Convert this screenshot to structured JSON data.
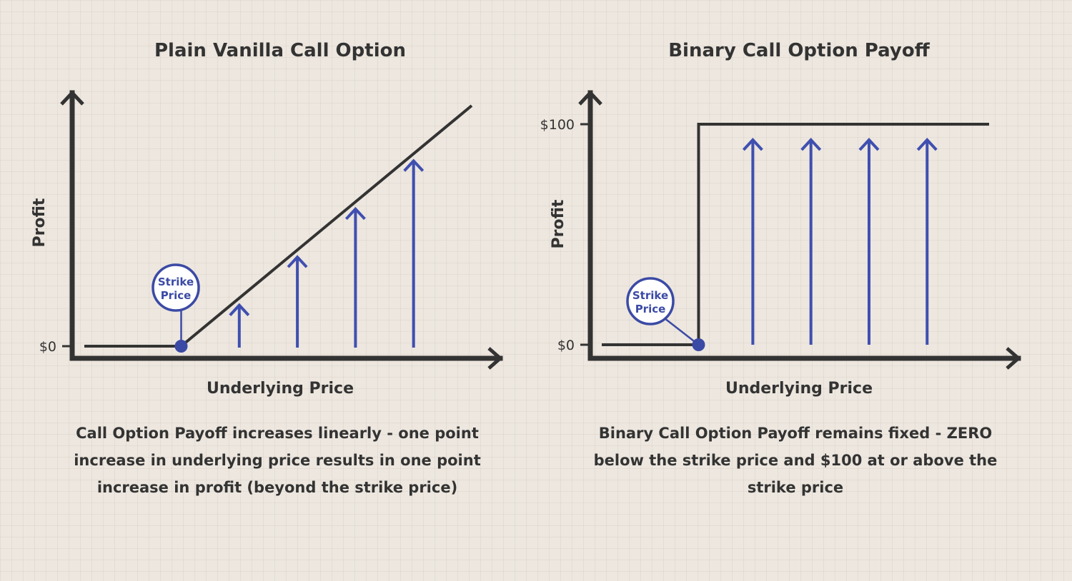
{
  "colors": {
    "background": "#ede7df",
    "axis": "#333333",
    "payoff_line": "#333333",
    "arrows": "#3f4fb0",
    "strike_marker": "#3b4aa5"
  },
  "chart_data": [
    {
      "type": "line",
      "title": "Plain Vanilla Call Option",
      "xlabel": "Underlying Price",
      "ylabel": "Profit",
      "yticks": [
        "$0"
      ],
      "strike_label": [
        "Strike",
        "Price"
      ],
      "payoff": "linear",
      "strike": 0.25,
      "x": [
        0,
        0.25,
        1
      ],
      "y": [
        0,
        0,
        0.75
      ],
      "arrow_positions": [
        0.4,
        0.55,
        0.7,
        0.85
      ],
      "arrow_kind": "increasing",
      "caption": [
        "Call Option Payoff increases linearly - one point",
        "increase in underlying price results in one point",
        "increase in profit (beyond the strike price)"
      ]
    },
    {
      "type": "line",
      "title": "Binary Call Option Payoff",
      "xlabel": "Underlying Price",
      "ylabel": "Profit",
      "yticks": [
        "$0",
        "$100"
      ],
      "strike_label": [
        "Strike",
        "Price"
      ],
      "payoff": "step",
      "strike": 0.25,
      "x": [
        0,
        0.25,
        0.25,
        1
      ],
      "y": [
        0,
        0,
        100,
        100
      ],
      "arrow_positions": [
        0.39,
        0.54,
        0.69,
        0.84
      ],
      "arrow_kind": "fixed",
      "caption": [
        "Binary Call Option Payoff remains fixed - ZERO",
        "below the strike price and $100 at or above the",
        "strike price"
      ]
    }
  ]
}
